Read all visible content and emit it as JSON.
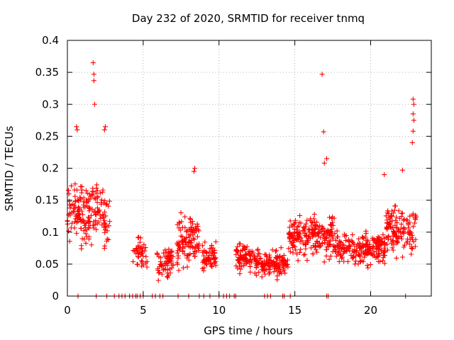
{
  "chart_data": {
    "type": "scatter",
    "title": "Day 232 of 2020, SRMTID for receiver tnmq",
    "xlabel": "GPS time / hours",
    "ylabel": "SRMTID / TECUs",
    "xlim": [
      0,
      24
    ],
    "ylim": [
      0,
      0.4
    ],
    "x_ticks": [
      0,
      5,
      10,
      15,
      20
    ],
    "y_ticks": [
      0,
      0.05,
      0.1,
      0.15,
      0.2,
      0.25,
      0.3,
      0.35,
      0.4
    ],
    "x_tick_labels": [
      "0",
      "5",
      "10",
      "15",
      "20"
    ],
    "y_tick_labels": [
      "0",
      "0.05",
      "0.1",
      "0.15",
      "0.2",
      "0.25",
      "0.3",
      "0.35",
      "0.4"
    ],
    "grid": true,
    "marker_color": "#ff0000",
    "marker": "plus",
    "series": [
      {
        "name": "SRMTID",
        "clusters": [
          {
            "x_range": [
              0.0,
              2.8
            ],
            "y_range": [
              0.06,
              0.2
            ],
            "count": 190
          },
          {
            "x_range": [
              4.3,
              5.3
            ],
            "y_range": [
              0.03,
              0.1
            ],
            "count": 45
          },
          {
            "x_range": [
              5.9,
              7.0
            ],
            "y_range": [
              0.02,
              0.085
            ],
            "count": 70
          },
          {
            "x_range": [
              7.2,
              8.7
            ],
            "y_range": [
              0.03,
              0.14
            ],
            "count": 110
          },
          {
            "x_range": [
              8.9,
              9.8
            ],
            "y_range": [
              0.03,
              0.09
            ],
            "count": 60
          },
          {
            "x_range": [
              11.1,
              12.8
            ],
            "y_range": [
              0.03,
              0.09
            ],
            "count": 110
          },
          {
            "x_range": [
              12.8,
              14.6
            ],
            "y_range": [
              0.02,
              0.08
            ],
            "count": 120
          },
          {
            "x_range": [
              14.6,
              17.6
            ],
            "y_range": [
              0.05,
              0.14
            ],
            "count": 220
          },
          {
            "x_range": [
              17.6,
              21.0
            ],
            "y_range": [
              0.04,
              0.11
            ],
            "count": 220
          },
          {
            "x_range": [
              21.0,
              23.0
            ],
            "y_range": [
              0.05,
              0.16
            ],
            "count": 130
          }
        ],
        "outliers": [
          {
            "x": 1.7,
            "y": 0.365
          },
          {
            "x": 1.75,
            "y": 0.347
          },
          {
            "x": 1.75,
            "y": 0.337
          },
          {
            "x": 1.8,
            "y": 0.3
          },
          {
            "x": 0.6,
            "y": 0.265
          },
          {
            "x": 0.65,
            "y": 0.26
          },
          {
            "x": 2.5,
            "y": 0.265
          },
          {
            "x": 2.45,
            "y": 0.26
          },
          {
            "x": 16.8,
            "y": 0.347
          },
          {
            "x": 16.9,
            "y": 0.257
          },
          {
            "x": 17.1,
            "y": 0.215
          },
          {
            "x": 16.95,
            "y": 0.208
          },
          {
            "x": 8.4,
            "y": 0.2
          },
          {
            "x": 8.35,
            "y": 0.195
          },
          {
            "x": 22.8,
            "y": 0.308
          },
          {
            "x": 22.85,
            "y": 0.3
          },
          {
            "x": 22.8,
            "y": 0.285
          },
          {
            "x": 22.85,
            "y": 0.275
          },
          {
            "x": 22.8,
            "y": 0.258
          },
          {
            "x": 22.75,
            "y": 0.24
          },
          {
            "x": 20.9,
            "y": 0.19
          },
          {
            "x": 22.1,
            "y": 0.197
          }
        ],
        "zero_points_x": [
          0.7,
          1.9,
          2.6,
          3.1,
          3.4,
          3.6,
          3.8,
          4.1,
          4.3,
          4.5,
          4.6,
          4.8,
          5.0,
          5.6,
          5.8,
          6.1,
          6.3,
          7.3,
          8.0,
          8.7,
          9.0,
          9.4,
          10.0,
          10.3,
          10.5,
          10.7,
          11.0,
          11.1,
          13.0,
          13.2,
          13.4,
          14.2,
          14.3,
          14.7,
          17.1,
          17.2,
          22.3
        ]
      }
    ]
  }
}
